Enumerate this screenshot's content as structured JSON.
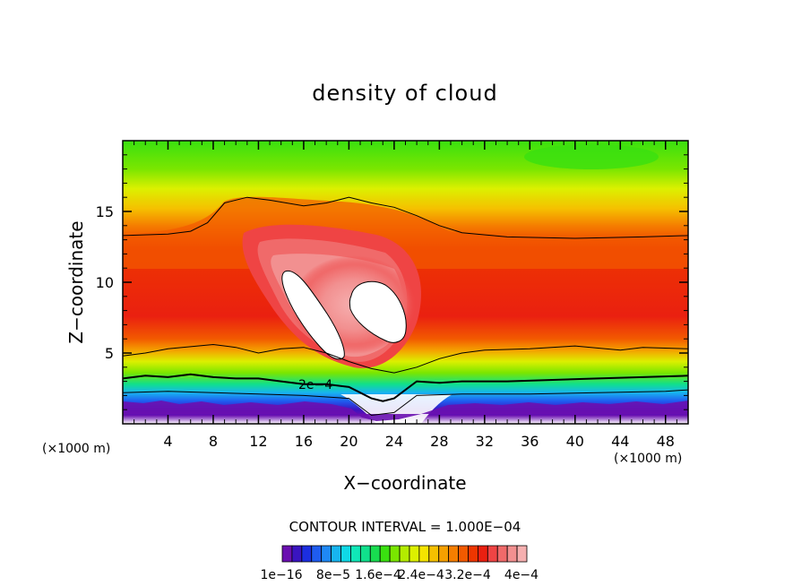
{
  "chart_data": {
    "type": "heatmap",
    "title": "density of cloud",
    "xlabel": "X−coordinate",
    "ylabel": "Z−coordinate",
    "x_unit_left": "(×1000 m)",
    "x_unit_right": "(×1000 m)",
    "xlim": [
      0,
      50
    ],
    "ylim": [
      0,
      20
    ],
    "x_ticks": [
      4,
      8,
      12,
      16,
      20,
      24,
      28,
      32,
      36,
      40,
      44,
      48
    ],
    "y_ticks": [
      5,
      10,
      15
    ],
    "contour_interval_text": "CONTOUR INTERVAL = 1.000E−04",
    "contour_label": "2e−4",
    "colorbar_labels": [
      "1e−16",
      "8e−5",
      "1.6e−4",
      "2.4e−4",
      "3.2e−4",
      "4e−4"
    ],
    "colorbar_colors": [
      "#6a0fb0",
      "#3a14c0",
      "#1c2ee0",
      "#1f5cf0",
      "#1f88f5",
      "#18b4f0",
      "#10d8e6",
      "#10e8b8",
      "#10e08c",
      "#18dc50",
      "#3ae010",
      "#7ae600",
      "#b4ec00",
      "#dcf000",
      "#f5e400",
      "#f5c000",
      "#f5a000",
      "#f57e00",
      "#f25a00",
      "#ee3600",
      "#ea2010",
      "#ef4444",
      "#f06a6a",
      "#f29090",
      "#f6b0b0"
    ],
    "contour_lines": [
      {
        "level": "2e-4",
        "points": [
          [
            0,
            3.2
          ],
          [
            2,
            3.4
          ],
          [
            4,
            3.3
          ],
          [
            6,
            3.5
          ],
          [
            8,
            3.3
          ],
          [
            10,
            3.2
          ],
          [
            12,
            3.2
          ],
          [
            14,
            3.0
          ],
          [
            16,
            2.8
          ],
          [
            18,
            2.8
          ],
          [
            20,
            2.6
          ],
          [
            21,
            2.2
          ],
          [
            22,
            1.8
          ],
          [
            23,
            1.6
          ],
          [
            24,
            1.8
          ],
          [
            25,
            2.4
          ],
          [
            26,
            3.0
          ],
          [
            28,
            2.9
          ],
          [
            30,
            3.0
          ],
          [
            34,
            3.0
          ],
          [
            38,
            3.1
          ],
          [
            42,
            3.2
          ],
          [
            46,
            3.3
          ],
          [
            50,
            3.4
          ]
        ]
      },
      {
        "level": "1e-4",
        "points": [
          [
            0,
            2.2
          ],
          [
            4,
            2.3
          ],
          [
            8,
            2.2
          ],
          [
            12,
            2.1
          ],
          [
            16,
            2.0
          ],
          [
            20,
            1.8
          ],
          [
            21,
            1.2
          ],
          [
            22,
            0.6
          ],
          [
            24,
            0.8
          ],
          [
            25,
            1.4
          ],
          [
            26,
            2.0
          ],
          [
            30,
            2.1
          ],
          [
            36,
            2.1
          ],
          [
            42,
            2.2
          ],
          [
            48,
            2.3
          ],
          [
            50,
            2.4
          ]
        ]
      },
      {
        "level": "3e-4",
        "points": [
          [
            0,
            4.8
          ],
          [
            2,
            5.0
          ],
          [
            4,
            5.3
          ],
          [
            8,
            5.6
          ],
          [
            10,
            5.4
          ],
          [
            12,
            5.0
          ],
          [
            14,
            5.3
          ],
          [
            16,
            5.4
          ],
          [
            18,
            5.0
          ],
          [
            20,
            4.4
          ],
          [
            22,
            3.9
          ],
          [
            24,
            3.6
          ],
          [
            26,
            4.0
          ],
          [
            28,
            4.6
          ],
          [
            30,
            5.0
          ],
          [
            32,
            5.2
          ],
          [
            36,
            5.3
          ],
          [
            40,
            5.5
          ],
          [
            44,
            5.2
          ],
          [
            46,
            5.4
          ],
          [
            50,
            5.3
          ]
        ]
      },
      {
        "level": "3e-4",
        "points": [
          [
            0,
            13.3
          ],
          [
            4,
            13.4
          ],
          [
            6,
            13.6
          ],
          [
            7.5,
            14.2
          ],
          [
            9,
            15.6
          ],
          [
            11,
            16.0
          ],
          [
            13,
            15.8
          ],
          [
            16,
            15.4
          ],
          [
            18,
            15.6
          ],
          [
            20,
            16.0
          ],
          [
            22,
            15.6
          ],
          [
            24,
            15.3
          ],
          [
            26,
            14.7
          ],
          [
            28,
            14.0
          ],
          [
            30,
            13.5
          ],
          [
            34,
            13.2
          ],
          [
            40,
            13.1
          ],
          [
            46,
            13.2
          ],
          [
            50,
            13.3
          ]
        ]
      }
    ]
  }
}
